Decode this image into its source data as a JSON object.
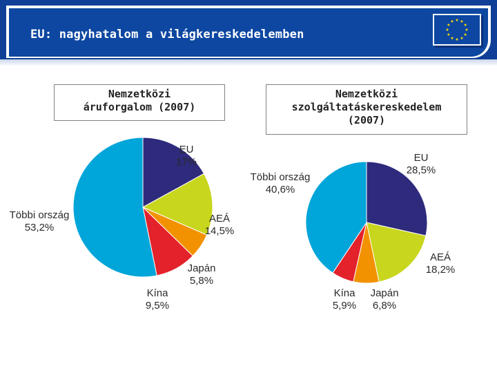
{
  "slide": {
    "title": "EU: nagyhatalom a világkereskedelemben"
  },
  "colors": {
    "header": "#0d47a1",
    "eu": "#2e2a7c",
    "aea": "#c8d61e",
    "japan": "#f39200",
    "china": "#e3222b",
    "other": "#00a5d9"
  },
  "chart_data": [
    {
      "type": "pie",
      "title_lines": [
        "Nemzetközi",
        "áruforgalom (2007)"
      ],
      "slices": [
        {
          "name": "EU",
          "value": 17,
          "label": "17%"
        },
        {
          "name": "AEÁ",
          "value": 14.5,
          "label": "14,5%"
        },
        {
          "name": "Japán",
          "value": 5.8,
          "label": "5,8%"
        },
        {
          "name": "Kína",
          "value": 9.5,
          "label": "9,5%"
        },
        {
          "name": "Többi ország",
          "value": 53.2,
          "label": "53,2%"
        }
      ]
    },
    {
      "type": "pie",
      "title_lines": [
        "Nemzetközi",
        "szolgáltatáskereskedelem",
        "(2007)"
      ],
      "slices": [
        {
          "name": "EU",
          "value": 28.5,
          "label": "28,5%"
        },
        {
          "name": "AEÁ",
          "value": 18.2,
          "label": "18,2%"
        },
        {
          "name": "Japán",
          "value": 6.8,
          "label": "6,8%"
        },
        {
          "name": "Kína",
          "value": 5.9,
          "label": "5,9%"
        },
        {
          "name": "Többi ország",
          "value": 40.6,
          "label": "40,6%"
        }
      ]
    }
  ]
}
